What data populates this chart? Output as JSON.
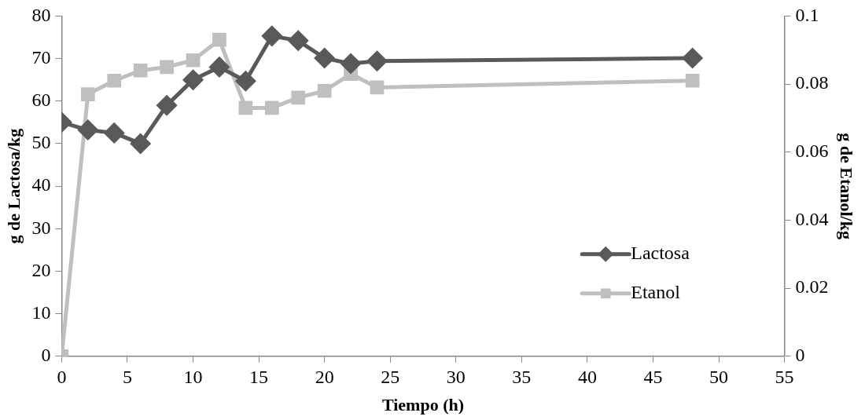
{
  "chart_data": {
    "type": "line",
    "xlabel": "Tiempo (h)",
    "ylabel": "g de Lactosa/kg",
    "y2label": "g de Etanol/kg",
    "xlim": [
      0,
      55
    ],
    "xticks": [
      0,
      5,
      10,
      15,
      20,
      25,
      30,
      35,
      40,
      45,
      50,
      55
    ],
    "ylim": [
      0,
      80
    ],
    "yticks": [
      0,
      10,
      20,
      30,
      40,
      50,
      60,
      70,
      80
    ],
    "y2lim": [
      0,
      0.1
    ],
    "y2ticks": [
      0,
      0.02,
      0.04,
      0.06,
      0.08,
      0.1
    ],
    "grid": false,
    "legend": "bottom right",
    "series": [
      {
        "name": "Lactosa",
        "color": "#595959",
        "marker": "diamond",
        "x": [
          0,
          2,
          4,
          6,
          8,
          10,
          12,
          14,
          16,
          18,
          20,
          22,
          24,
          48
        ],
        "values": [
          55,
          53.2,
          52.5,
          50,
          59,
          65,
          68,
          64.7,
          75.3,
          74.2,
          70.1,
          68.8,
          69.4,
          70.1
        ]
      },
      {
        "name": "Etanol",
        "color": "#bfbfbf",
        "marker": "square",
        "axis": "y2",
        "x": [
          0,
          2,
          4,
          6,
          8,
          10,
          12,
          14,
          16,
          18,
          20,
          22,
          24,
          48
        ],
        "values": [
          0,
          0.077,
          0.081,
          0.084,
          0.085,
          0.087,
          0.093,
          0.073,
          0.073,
          0.076,
          0.078,
          0.083,
          0.079,
          0.081
        ]
      }
    ]
  }
}
